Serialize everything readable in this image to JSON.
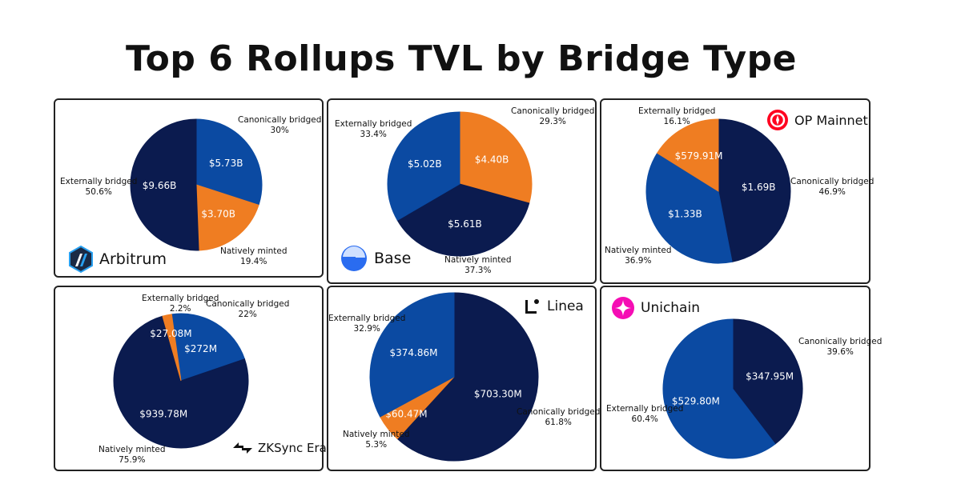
{
  "title": "Top 6 Rollups TVL by Bridge Type",
  "colors": {
    "canonical": "#0b4aa2",
    "external": "#0b1b4f",
    "native": "#ef7d22",
    "white": "#ffffff"
  },
  "chart_data": [
    {
      "type": "pie",
      "chain": "Arbitrum",
      "slices": [
        {
          "name": "Canonically bridged",
          "value_label": "$5.73B",
          "percent_label": "30%",
          "percent": 30,
          "color": "#0b4aa2"
        },
        {
          "name": "Natively minted",
          "value_label": "$3.70B",
          "percent_label": "19.4%",
          "percent": 19.4,
          "color": "#ef7d22"
        },
        {
          "name": "Externally bridged",
          "value_label": "$9.66B",
          "percent_label": "50.6%",
          "percent": 50.6,
          "color": "#0b1b4f"
        }
      ]
    },
    {
      "type": "pie",
      "chain": "Base",
      "slices": [
        {
          "name": "Canonically bridged",
          "value_label": "$4.40B",
          "percent_label": "29.3%",
          "percent": 29.3,
          "color": "#ef7d22"
        },
        {
          "name": "Natively minted",
          "value_label": "$5.61B",
          "percent_label": "37.3%",
          "percent": 37.3,
          "color": "#0b1b4f"
        },
        {
          "name": "Externally bridged",
          "value_label": "$5.02B",
          "percent_label": "33.4%",
          "percent": 33.4,
          "color": "#0b4aa2"
        }
      ]
    },
    {
      "type": "pie",
      "chain": "OP Mainnet",
      "slices": [
        {
          "name": "Canonically bridged",
          "value_label": "$1.69B",
          "percent_label": "46.9%",
          "percent": 46.9,
          "color": "#0b1b4f"
        },
        {
          "name": "Natively minted",
          "value_label": "$1.33B",
          "percent_label": "36.9%",
          "percent": 36.9,
          "color": "#0b4aa2"
        },
        {
          "name": "Externally bridged",
          "value_label": "$579.91M",
          "percent_label": "16.1%",
          "percent": 16.1,
          "color": "#ef7d22"
        }
      ]
    },
    {
      "type": "pie",
      "chain": "ZKSync Era",
      "slices": [
        {
          "name": "Canonically bridged",
          "value_label": "$272M",
          "percent_label": "22%",
          "percent": 22,
          "color": "#0b4aa2"
        },
        {
          "name": "Natively minted",
          "value_label": "$939.78M",
          "percent_label": "75.9%",
          "percent": 75.9,
          "color": "#0b1b4f"
        },
        {
          "name": "Externally bridged",
          "value_label": "$27.08M",
          "percent_label": "2.2%",
          "percent": 2.2,
          "color": "#ef7d22"
        }
      ]
    },
    {
      "type": "pie",
      "chain": "Linea",
      "slices": [
        {
          "name": "Canonically bridged",
          "value_label": "$703.30M",
          "percent_label": "61.8%",
          "percent": 61.8,
          "color": "#0b1b4f"
        },
        {
          "name": "Natively minted",
          "value_label": "$60.47M",
          "percent_label": "5.3%",
          "percent": 5.3,
          "color": "#ef7d22"
        },
        {
          "name": "Externally bridged",
          "value_label": "$374.86M",
          "percent_label": "32.9%",
          "percent": 32.9,
          "color": "#0b4aa2"
        }
      ]
    },
    {
      "type": "pie",
      "chain": "Unichain",
      "slices": [
        {
          "name": "Canonically bridged",
          "value_label": "$347.95M",
          "percent_label": "39.6%",
          "percent": 39.6,
          "color": "#0b1b4f"
        },
        {
          "name": "Externally bridged",
          "value_label": "$529.80M",
          "percent_label": "60.4%",
          "percent": 60.4,
          "color": "#0b4aa2"
        }
      ]
    }
  ]
}
